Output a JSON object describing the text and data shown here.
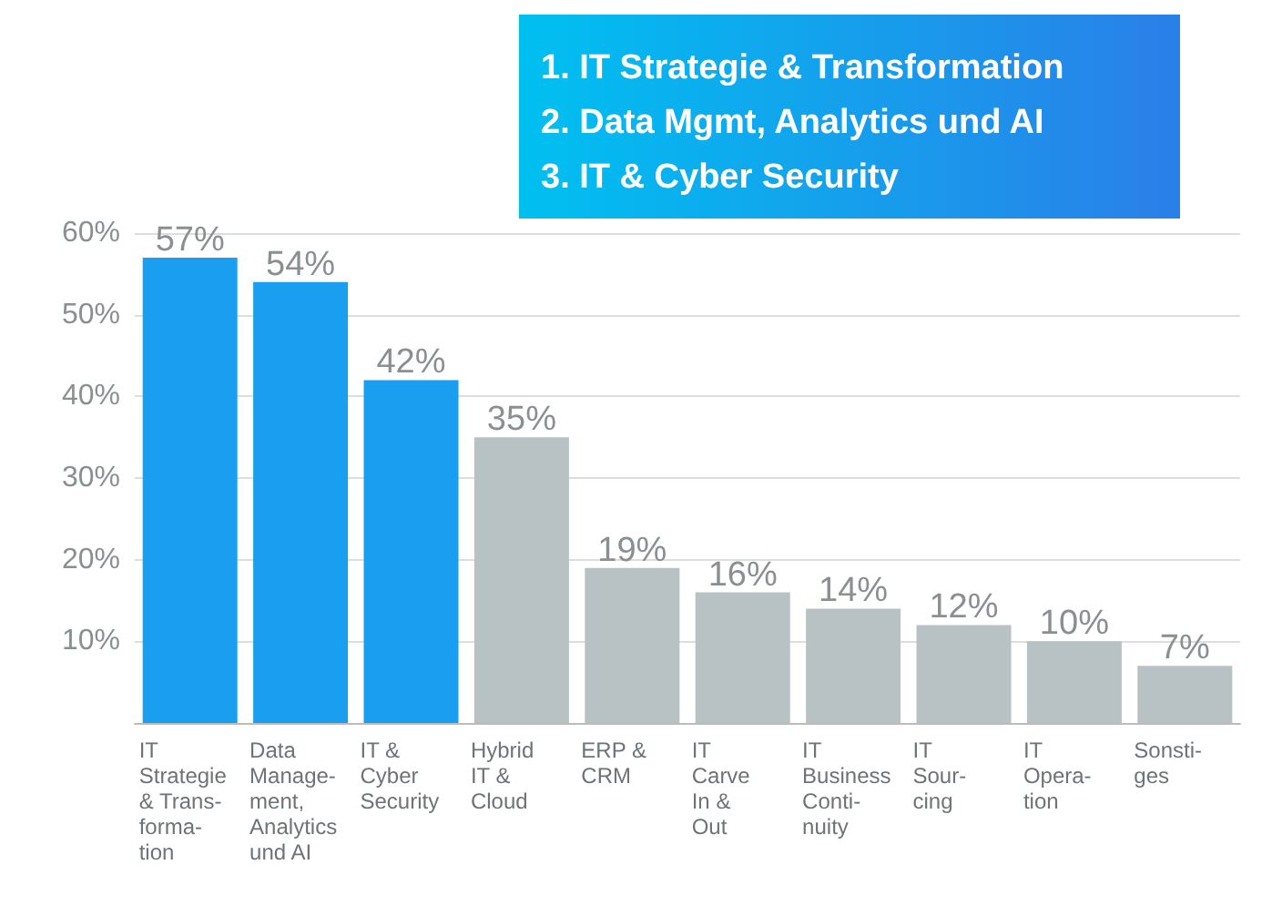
{
  "chart_data": {
    "type": "bar",
    "annotations": [
      "1. IT Strategie & Transformation",
      "2. Data Mgmt, Analytics und AI",
      "3. IT & Cyber Security"
    ],
    "categories": [
      "IT\nStrategie\n& Trans-\nforma-\ntion",
      "Data\nManage-\nment,\nAnalytics\nund AI",
      "IT &\nCyber\nSecurity",
      "Hybrid\nIT &\nCloud",
      "ERP &\nCRM",
      "IT\nCarve\nIn &\nOut",
      "IT\nBusiness\nConti-\nnuity",
      "IT\nSour-\ncing",
      "IT\nOpera-\ntion",
      "Sonsti-\nges"
    ],
    "values": [
      57,
      54,
      42,
      35,
      19,
      16,
      14,
      12,
      10,
      7
    ],
    "value_labels": [
      "57%",
      "54%",
      "42%",
      "35%",
      "19%",
      "16%",
      "14%",
      "12%",
      "10%",
      "7%"
    ],
    "colors": [
      "#1a9ef0",
      "#1a9ef0",
      "#1a9ef0",
      "#b8c2c5",
      "#b8c2c5",
      "#b8c2c5",
      "#b8c2c5",
      "#b8c2c5",
      "#b8c2c5",
      "#b8c2c5"
    ],
    "ylim": [
      0,
      60
    ],
    "yticks": [
      {
        "value": 10,
        "label": "10%"
      },
      {
        "value": 20,
        "label": "20%"
      },
      {
        "value": 30,
        "label": "30%"
      },
      {
        "value": 40,
        "label": "40%"
      },
      {
        "value": 50,
        "label": "50%"
      },
      {
        "value": 60,
        "label": "60%"
      }
    ],
    "grid": "y"
  }
}
